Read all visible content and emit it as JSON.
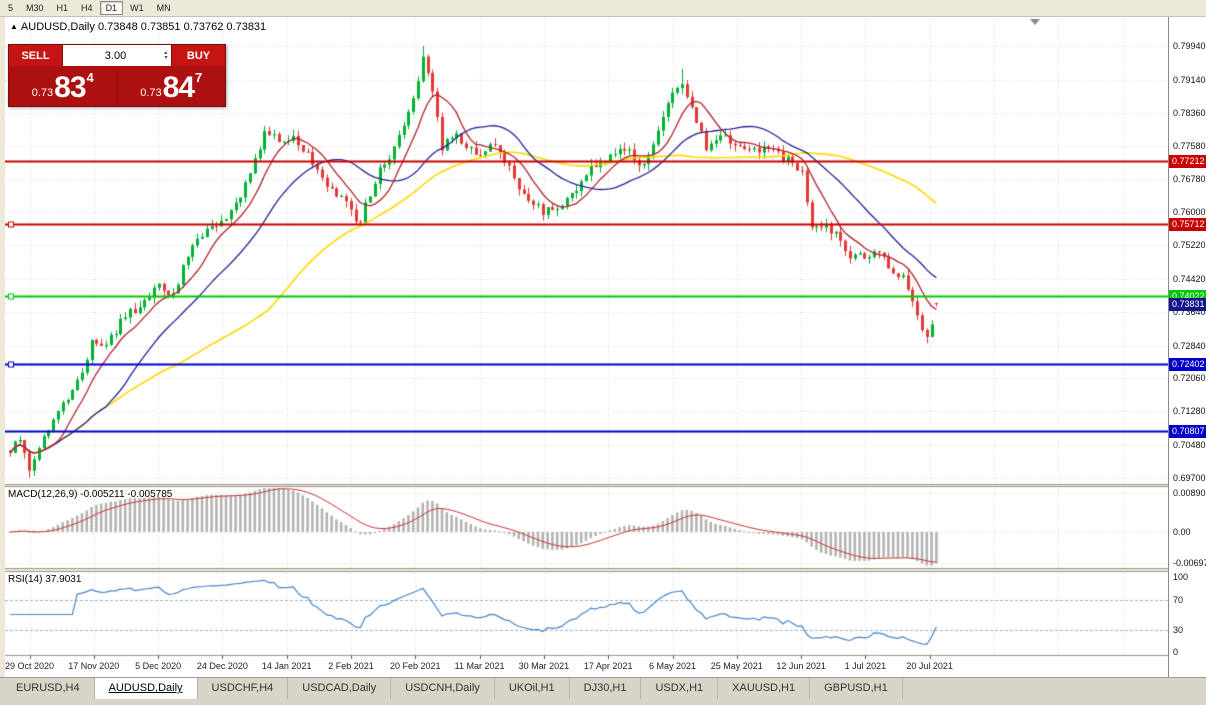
{
  "toolbar": {
    "timeframes": [
      "5",
      "M30",
      "H1",
      "H4",
      "D1",
      "W1",
      "MN"
    ],
    "active": "D1"
  },
  "chart_header": {
    "symbol": "AUDUSD,Daily",
    "ohlc": "0.73848 0.73851 0.73762 0.73831"
  },
  "trade_panel": {
    "sell_label": "SELL",
    "buy_label": "BUY",
    "volume": "3.00",
    "sell_price": {
      "base": "0.73",
      "pips": "83",
      "pt": "4"
    },
    "buy_price": {
      "base": "0.73",
      "pips": "84",
      "pt": "7"
    }
  },
  "price_axis": {
    "labels": [
      "0.79940",
      "0.79140",
      "0.78360",
      "0.77580",
      "0.76780",
      "0.76000",
      "0.75220",
      "0.74420",
      "0.73640",
      "0.72840",
      "0.72060",
      "0.71280",
      "0.70480",
      "0.69700"
    ],
    "current_price": "0.73831",
    "current_price_color": "#15158d"
  },
  "hlines": [
    {
      "value": "0.77212",
      "color": "#c80000",
      "marker": false
    },
    {
      "value": "0.75712",
      "color": "#c80000",
      "marker": true
    },
    {
      "value": "0.74022",
      "color": "#00c800",
      "marker": true
    },
    {
      "value": "0.72402",
      "color": "#0000c8",
      "marker": true
    },
    {
      "value": "0.70807",
      "color": "#0000c8",
      "marker": false
    }
  ],
  "indicators": {
    "macd": {
      "label": "MACD(12,26,9) -0.005211 -0.005785",
      "params": [
        12,
        26,
        9
      ],
      "main_value": -0.005211,
      "signal_value": -0.005785,
      "axis_labels": [
        "0.00890",
        "0.00",
        "-0.00697"
      ]
    },
    "rsi": {
      "label": "RSI(14) 37.9031",
      "period": 14,
      "value": 37.9031,
      "axis_labels": [
        "100",
        "70",
        "30",
        "0"
      ],
      "levels": [
        70,
        30
      ]
    }
  },
  "date_axis": [
    "29 Oct 2020",
    "17 Nov 2020",
    "5 Dec 2020",
    "24 Dec 2020",
    "14 Jan 2021",
    "2 Feb 2021",
    "20 Feb 2021",
    "11 Mar 2021",
    "30 Mar 2021",
    "17 Apr 2021",
    "6 May 2021",
    "25 May 2021",
    "12 Jun 2021",
    "1 Jul 2021",
    "20 Jul 2021"
  ],
  "tabs": [
    {
      "label": "EURUSD,H4",
      "active": false
    },
    {
      "label": "AUDUSD,Daily",
      "active": true
    },
    {
      "label": "USDCHF,H4",
      "active": false
    },
    {
      "label": "USDCAD,Daily",
      "active": false
    },
    {
      "label": "USDCNH,Daily",
      "active": false
    },
    {
      "label": "UKOil,H1",
      "active": false
    },
    {
      "label": "DJ30,H1",
      "active": false
    },
    {
      "label": "USDX,H1",
      "active": false
    },
    {
      "label": "XAUUSD,H1",
      "active": false
    },
    {
      "label": "GBPUSD,H1",
      "active": false
    }
  ],
  "chart_data": {
    "type": "candlestick",
    "symbol": "AUDUSD",
    "timeframe": "Daily",
    "bars": 194,
    "ylim": [
      0.6956,
      0.806
    ],
    "y_tick_labels": [
      "0.79940",
      "0.79140",
      "0.78360",
      "0.77580",
      "0.76780",
      "0.76000",
      "0.75220",
      "0.74420",
      "0.73640",
      "0.72840",
      "0.72060",
      "0.71280",
      "0.70480",
      "0.69700"
    ],
    "x_tick_labels": [
      "29 Oct 2020",
      "17 Nov 2020",
      "5 Dec 2020",
      "24 Dec 2020",
      "14 Jan 2021",
      "2 Feb 2021",
      "20 Feb 2021",
      "11 Mar 2021",
      "30 Mar 2021",
      "17 Apr 2021",
      "6 May 2021",
      "25 May 2021",
      "12 Jun 2021",
      "1 Jul 2021",
      "20 Jul 2021"
    ],
    "current_price": 0.73831,
    "last_candle": {
      "o": 0.73848,
      "h": 0.73851,
      "l": 0.73762,
      "c": 0.73831
    },
    "horizontal_levels": [
      0.77212,
      0.75712,
      0.74022,
      0.72402,
      0.70807
    ],
    "price_anchors": [
      [
        0,
        0.7035
      ],
      [
        2,
        0.7055
      ],
      [
        4,
        0.6992
      ],
      [
        6,
        0.7028
      ],
      [
        9,
        0.712
      ],
      [
        13,
        0.7172
      ],
      [
        17,
        0.7288
      ],
      [
        20,
        0.7298
      ],
      [
        24,
        0.7348
      ],
      [
        28,
        0.7392
      ],
      [
        31,
        0.7418
      ],
      [
        34,
        0.7405
      ],
      [
        38,
        0.7528
      ],
      [
        41,
        0.7562
      ],
      [
        44,
        0.758
      ],
      [
        47,
        0.7618
      ],
      [
        50,
        0.7702
      ],
      [
        53,
        0.7788
      ],
      [
        56,
        0.7768
      ],
      [
        59,
        0.7775
      ],
      [
        62,
        0.7738
      ],
      [
        65,
        0.7672
      ],
      [
        68,
        0.7642
      ],
      [
        71,
        0.7602
      ],
      [
        73,
        0.7578
      ],
      [
        76,
        0.7678
      ],
      [
        79,
        0.7738
      ],
      [
        82,
        0.7798
      ],
      [
        84,
        0.7872
      ],
      [
        86,
        0.7958
      ],
      [
        88,
        0.7878
      ],
      [
        90,
        0.7748
      ],
      [
        93,
        0.7786
      ],
      [
        96,
        0.7752
      ],
      [
        98,
        0.7728
      ],
      [
        101,
        0.7764
      ],
      [
        104,
        0.7706
      ],
      [
        107,
        0.7642
      ],
      [
        111,
        0.7596
      ],
      [
        114,
        0.7608
      ],
      [
        118,
        0.7652
      ],
      [
        121,
        0.7708
      ],
      [
        125,
        0.7734
      ],
      [
        128,
        0.7758
      ],
      [
        131,
        0.7706
      ],
      [
        134,
        0.7768
      ],
      [
        137,
        0.7858
      ],
      [
        140,
        0.7916
      ],
      [
        142,
        0.7838
      ],
      [
        145,
        0.7752
      ],
      [
        148,
        0.7774
      ],
      [
        151,
        0.7764
      ],
      [
        154,
        0.7744
      ],
      [
        157,
        0.7758
      ],
      [
        160,
        0.7738
      ],
      [
        163,
        0.7718
      ],
      [
        165,
        0.7698
      ],
      [
        167,
        0.7562
      ],
      [
        170,
        0.7556
      ],
      [
        173,
        0.7538
      ],
      [
        175,
        0.7502
      ],
      [
        178,
        0.7486
      ],
      [
        181,
        0.7514
      ],
      [
        183,
        0.7472
      ],
      [
        186,
        0.7446
      ],
      [
        188,
        0.7398
      ],
      [
        190,
        0.7332
      ],
      [
        191,
        0.7296
      ],
      [
        193,
        0.7383
      ]
    ],
    "wick_overrides": [
      [
        86,
        "h",
        0.7994
      ],
      [
        140,
        "h",
        0.794
      ],
      [
        191,
        "l",
        0.7289
      ],
      [
        4,
        "l",
        0.6971
      ]
    ],
    "ma_periods": [
      8,
      21,
      55
    ],
    "overlay_colors": {
      "bull": "#00b232",
      "bear": "#e53935",
      "ma_fast": "#b42430",
      "ma_mid": "#26269a",
      "ma_slow": "#ffd900",
      "macd_hist": "#b2b2b2",
      "macd_signal": "#cc3333",
      "rsi_line": "#4a86c8"
    }
  }
}
